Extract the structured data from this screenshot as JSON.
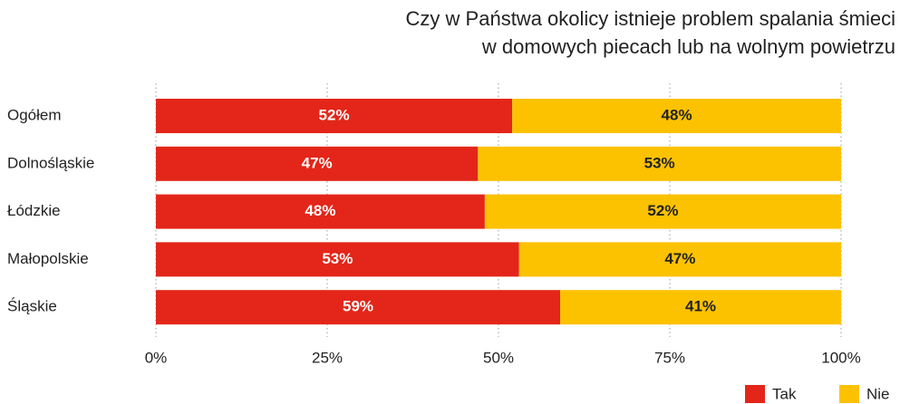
{
  "chart_data": {
    "type": "stacked_barh",
    "title": [
      "Czy w Państwa okolicy istnieje problem spalania śmieci",
      "w domowych piecach lub na wolnym powietrzu"
    ],
    "categories": [
      "Ogółem",
      "Dolnośląskie",
      "Łódzkie",
      "Małopolskie",
      "Śląskie"
    ],
    "series": [
      {
        "name": "Tak",
        "color": "#e32619",
        "values": [
          52,
          47,
          48,
          53,
          59
        ],
        "value_labels": [
          "52%",
          "47%",
          "48%",
          "53%",
          "59%"
        ]
      },
      {
        "name": "Nie",
        "color": "#fcc200",
        "values": [
          48,
          53,
          52,
          47,
          41
        ],
        "value_labels": [
          "48%",
          "53%",
          "52%",
          "47%",
          "41%"
        ]
      }
    ],
    "xlim": [
      0,
      100
    ],
    "xticks": [
      {
        "value": 0,
        "label": "0%"
      },
      {
        "value": 25,
        "label": "25%"
      },
      {
        "value": 50,
        "label": "50%"
      },
      {
        "value": 75,
        "label": "75%"
      },
      {
        "value": 100,
        "label": "100%"
      }
    ],
    "grid": true,
    "legend": "bottom-right"
  }
}
